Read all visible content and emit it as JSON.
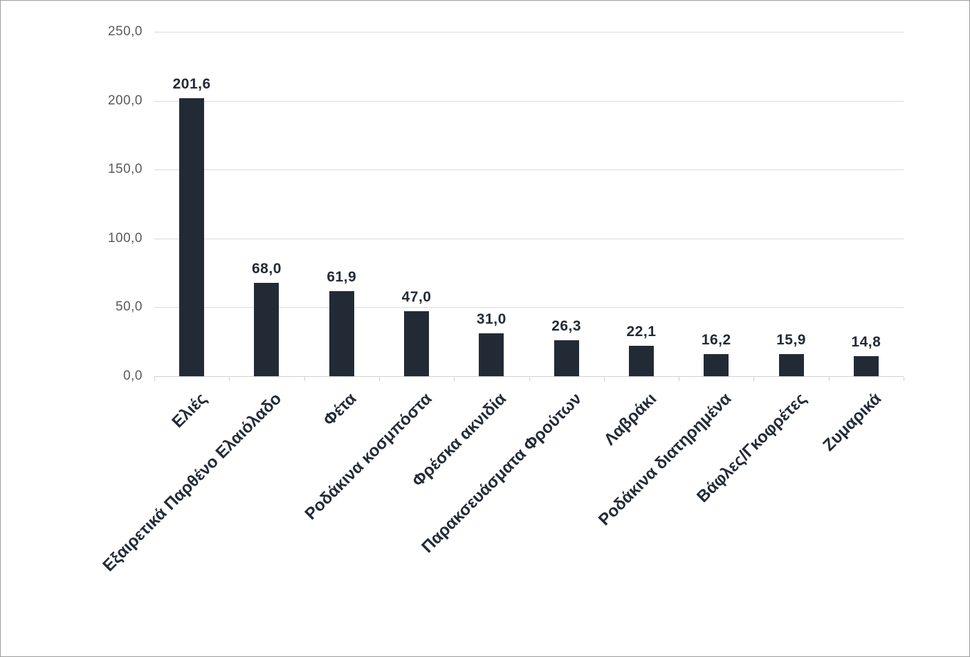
{
  "chart_data": {
    "type": "bar",
    "title": "",
    "xlabel": "",
    "ylabel": "",
    "categories": [
      "Ελιές",
      "Εξαιρετικά Παρθένο Ελαιόλαδο",
      "Φέτα",
      "Ροδάκινα κοσμπόστα",
      "Φρέσκα ακνιδία",
      "Παρακσευάσματα Φρούτων",
      "Λαβράκι",
      "Ροδάκινα διατηρημένα",
      "Βάφλες/Γκοφρέτες",
      "Ζυμαρικά"
    ],
    "values": [
      201.6,
      68.0,
      61.9,
      47.0,
      31.0,
      26.3,
      22.1,
      16.2,
      15.9,
      14.8
    ],
    "value_labels": [
      "201,6",
      "68,0",
      "61,9",
      "47,0",
      "31,0",
      "26,3",
      "22,1",
      "16,2",
      "15,9",
      "14,8"
    ],
    "y_tick_values": [
      0,
      50,
      100,
      150,
      200,
      250
    ],
    "y_tick_labels": [
      "0,0",
      "50,0",
      "100,0",
      "150,0",
      "200,0",
      "250,0"
    ],
    "ylim": [
      0,
      250
    ],
    "grid": true,
    "legend": "none",
    "decimal_separator": ",",
    "colors": {
      "bar": "#222b35",
      "gridline": "#d9d9d9",
      "axis_line": "#d0d0d0",
      "y_tick_label": "#595959",
      "data_label": "#222b35",
      "category_label": "#222b35",
      "frame_border": "#9b9b9b",
      "background": "#ffffff"
    }
  }
}
